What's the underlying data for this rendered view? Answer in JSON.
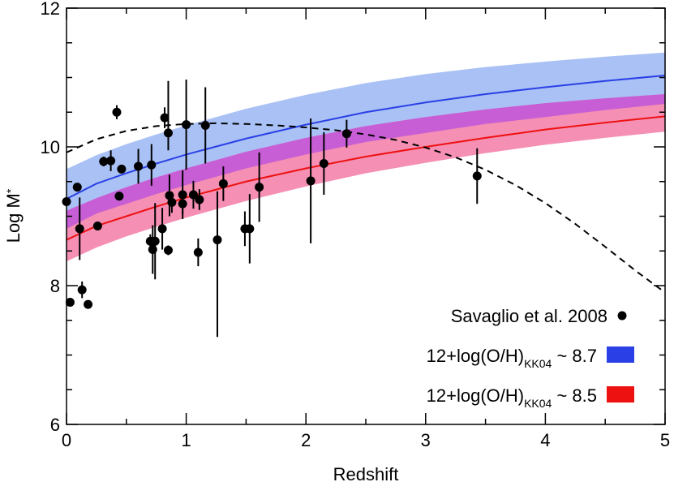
{
  "chart_data": {
    "type": "scatter",
    "title": "",
    "xlabel": "Redshift",
    "ylabel": "Log M",
    "ylabel_sub": "*",
    "xlim": [
      0,
      5
    ],
    "ylim": [
      6,
      12
    ],
    "x_ticks": [
      0,
      1,
      2,
      3,
      4,
      5
    ],
    "y_ticks": [
      6,
      8,
      10,
      12
    ],
    "x_minor_step": 0.5,
    "y_minor_step": 0.5,
    "grid": false,
    "legend_position": "bottom-right",
    "points": {
      "name": "Savaglio et al. 2008",
      "color": "#000000",
      "data": [
        {
          "x": 0.0,
          "y": 9.21,
          "err_low": 0.0,
          "err_high": 0.0
        },
        {
          "x": 0.03,
          "y": 7.76,
          "err_low": 0.05,
          "err_high": 0.05
        },
        {
          "x": 0.09,
          "y": 9.42,
          "err_low": 0.0,
          "err_high": 0.0
        },
        {
          "x": 0.11,
          "y": 8.82,
          "err_low": 0.45,
          "err_high": 0.45
        },
        {
          "x": 0.13,
          "y": 7.94,
          "err_low": 0.12,
          "err_high": 0.12
        },
        {
          "x": 0.18,
          "y": 7.73,
          "err_low": 0.0,
          "err_high": 0.0
        },
        {
          "x": 0.26,
          "y": 8.86,
          "err_low": 0.0,
          "err_high": 0.0
        },
        {
          "x": 0.31,
          "y": 9.79,
          "err_low": 0.07,
          "err_high": 0.07
        },
        {
          "x": 0.37,
          "y": 9.8,
          "err_low": 0.15,
          "err_high": 0.15
        },
        {
          "x": 0.42,
          "y": 10.5,
          "err_low": 0.1,
          "err_high": 0.1
        },
        {
          "x": 0.44,
          "y": 9.29,
          "err_low": 0.0,
          "err_high": 0.0
        },
        {
          "x": 0.46,
          "y": 9.68,
          "err_low": 0.06,
          "err_high": 0.06
        },
        {
          "x": 0.6,
          "y": 9.72,
          "err_low": 0.25,
          "err_high": 0.25
        },
        {
          "x": 0.7,
          "y": 8.64,
          "err_low": 0.1,
          "err_high": 0.1
        },
        {
          "x": 0.71,
          "y": 9.74,
          "err_low": 0.3,
          "err_high": 0.3
        },
        {
          "x": 0.72,
          "y": 8.52,
          "err_low": 0.35,
          "err_high": 0.35
        },
        {
          "x": 0.74,
          "y": 8.64,
          "err_low": 0.55,
          "err_high": 0.55
        },
        {
          "x": 0.8,
          "y": 8.82,
          "err_low": 0.3,
          "err_high": 0.3
        },
        {
          "x": 0.82,
          "y": 10.42,
          "err_low": 0.15,
          "err_high": 0.15
        },
        {
          "x": 0.85,
          "y": 8.51,
          "err_low": 0.07,
          "err_high": 0.07
        },
        {
          "x": 0.85,
          "y": 10.2,
          "err_low": 0.25,
          "err_high": 0.75
        },
        {
          "x": 0.86,
          "y": 9.3,
          "err_low": 0.3,
          "err_high": 0.3
        },
        {
          "x": 0.88,
          "y": 9.2,
          "err_low": 0.15,
          "err_high": 0.15
        },
        {
          "x": 0.97,
          "y": 9.31,
          "err_low": 0.35,
          "err_high": 0.35
        },
        {
          "x": 0.97,
          "y": 9.18,
          "err_low": 0.15,
          "err_high": 0.15
        },
        {
          "x": 1.0,
          "y": 10.32,
          "err_low": 0.65,
          "err_high": 0.65
        },
        {
          "x": 1.06,
          "y": 9.31,
          "err_low": 0.2,
          "err_high": 0.2
        },
        {
          "x": 1.1,
          "y": 8.48,
          "err_low": 0.2,
          "err_high": 0.2
        },
        {
          "x": 1.11,
          "y": 9.24,
          "err_low": 0.15,
          "err_high": 0.15
        },
        {
          "x": 1.16,
          "y": 10.31,
          "err_low": 0.55,
          "err_high": 0.55
        },
        {
          "x": 1.26,
          "y": 8.66,
          "err_low": 1.4,
          "err_high": 0.7
        },
        {
          "x": 1.31,
          "y": 9.47,
          "err_low": 0.25,
          "err_high": 0.25
        },
        {
          "x": 1.49,
          "y": 8.82,
          "err_low": 0.25,
          "err_high": 0.25
        },
        {
          "x": 1.53,
          "y": 8.82,
          "err_low": 0.5,
          "err_high": 0.5
        },
        {
          "x": 1.61,
          "y": 9.42,
          "err_low": 0.5,
          "err_high": 0.5
        },
        {
          "x": 2.04,
          "y": 9.51,
          "err_low": 0.9,
          "err_high": 0.9
        },
        {
          "x": 2.15,
          "y": 9.76,
          "err_low": 0.45,
          "err_high": 0.45
        },
        {
          "x": 2.34,
          "y": 10.19,
          "err_low": 0.2,
          "err_high": 0.2
        },
        {
          "x": 3.43,
          "y": 9.58,
          "err_low": 0.4,
          "err_high": 0.4
        }
      ]
    },
    "curves": [
      {
        "name": "12+log(O/H)KK04 ~ 8.7",
        "legend_main": "12+log(O/H)",
        "legend_sub": "KK04",
        "legend_tail": " ~ 8.7",
        "line_color": "#2a40e6",
        "band_color": "#a9c1f5",
        "x": [
          0,
          0.25,
          0.5,
          0.75,
          1,
          1.5,
          2,
          2.5,
          3,
          3.5,
          4,
          4.5,
          5
        ],
        "y": [
          9.25,
          9.47,
          9.62,
          9.76,
          9.89,
          10.12,
          10.32,
          10.5,
          10.64,
          10.76,
          10.86,
          10.95,
          11.03
        ],
        "y_low": [
          8.82,
          9.04,
          9.18,
          9.32,
          9.45,
          9.69,
          9.89,
          10.07,
          10.2,
          10.33,
          10.43,
          10.53,
          10.62
        ],
        "y_high": [
          9.68,
          9.88,
          10.04,
          10.18,
          10.31,
          10.55,
          10.75,
          10.92,
          11.05,
          11.15,
          11.23,
          11.3,
          11.36
        ]
      },
      {
        "name": "12+log(O/H)KK04 ~ 8.5",
        "legend_main": "12+log(O/H)",
        "legend_sub": "KK04",
        "legend_tail": " ~ 8.5",
        "line_color": "#ee1111",
        "band_color": "#f58fb4",
        "x": [
          0,
          0.25,
          0.5,
          0.75,
          1,
          1.5,
          2,
          2.5,
          3,
          3.5,
          4,
          4.5,
          5
        ],
        "y": [
          8.66,
          8.86,
          9.0,
          9.14,
          9.27,
          9.5,
          9.69,
          9.86,
          10.0,
          10.13,
          10.25,
          10.35,
          10.44
        ],
        "y_low": [
          8.35,
          8.55,
          8.71,
          8.85,
          8.98,
          9.22,
          9.43,
          9.62,
          9.77,
          9.91,
          10.03,
          10.13,
          10.22
        ],
        "y_high": [
          9.08,
          9.26,
          9.42,
          9.56,
          9.69,
          9.93,
          10.13,
          10.3,
          10.43,
          10.54,
          10.63,
          10.7,
          10.76
        ]
      }
    ],
    "overlap_color": "#c75ed5",
    "dashed_curve": {
      "name": "dashed",
      "color": "#000000",
      "x": [
        0,
        0.25,
        0.5,
        0.75,
        1,
        1.25,
        1.5,
        1.75,
        2,
        2.25,
        2.5,
        2.75,
        3,
        3.25,
        3.5,
        3.75,
        4,
        4.25,
        4.5,
        4.75,
        5
      ],
      "y": [
        9.92,
        10.11,
        10.23,
        10.3,
        10.33,
        10.34,
        10.33,
        10.31,
        10.28,
        10.24,
        10.18,
        10.1,
        9.99,
        9.85,
        9.67,
        9.45,
        9.19,
        8.89,
        8.56,
        8.22,
        7.9
      ]
    }
  }
}
